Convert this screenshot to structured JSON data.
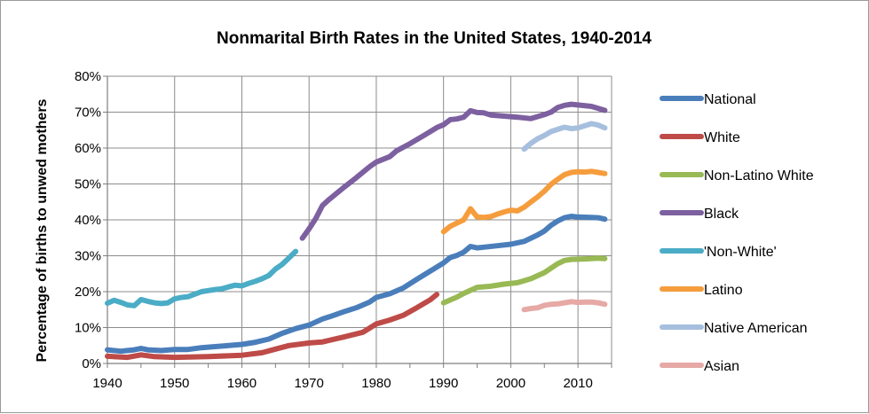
{
  "chart_data": {
    "type": "line",
    "title": "Nonmarital Birth Rates in the United States, 1940-2014",
    "ylabel": "Percentage of births to unwed mothers",
    "xlabel": "",
    "xlim": [
      1940,
      2015
    ],
    "ylim": [
      0,
      80
    ],
    "grid": true,
    "legend_position": "right",
    "x_ticks": [
      "1940",
      "1950",
      "1960",
      "1970",
      "1980",
      "1990",
      "2000",
      "2010"
    ],
    "y_ticks": [
      "0%",
      "10%",
      "20%",
      "30%",
      "40%",
      "50%",
      "60%",
      "70%",
      "80%"
    ],
    "series": [
      {
        "name": "National",
        "color": "#4a7ebb",
        "points": [
          [
            1940,
            3.8
          ],
          [
            1942,
            3.4
          ],
          [
            1943,
            3.6
          ],
          [
            1944,
            3.8
          ],
          [
            1945,
            4.2
          ],
          [
            1946,
            3.8
          ],
          [
            1948,
            3.6
          ],
          [
            1950,
            3.9
          ],
          [
            1952,
            3.9
          ],
          [
            1954,
            4.4
          ],
          [
            1956,
            4.7
          ],
          [
            1958,
            5.0
          ],
          [
            1960,
            5.3
          ],
          [
            1962,
            5.9
          ],
          [
            1964,
            6.8
          ],
          [
            1966,
            8.4
          ],
          [
            1968,
            9.7
          ],
          [
            1970,
            10.7
          ],
          [
            1972,
            12.4
          ],
          [
            1973,
            13.0
          ],
          [
            1975,
            14.3
          ],
          [
            1977,
            15.5
          ],
          [
            1979,
            17.1
          ],
          [
            1980,
            18.4
          ],
          [
            1982,
            19.4
          ],
          [
            1984,
            21.0
          ],
          [
            1986,
            23.4
          ],
          [
            1988,
            25.7
          ],
          [
            1990,
            28.0
          ],
          [
            1991,
            29.5
          ],
          [
            1992,
            30.1
          ],
          [
            1993,
            31.0
          ],
          [
            1994,
            32.6
          ],
          [
            1995,
            32.2
          ],
          [
            1996,
            32.4
          ],
          [
            1998,
            32.8
          ],
          [
            2000,
            33.2
          ],
          [
            2002,
            34.0
          ],
          [
            2004,
            35.8
          ],
          [
            2005,
            36.9
          ],
          [
            2006,
            38.5
          ],
          [
            2007,
            39.7
          ],
          [
            2008,
            40.6
          ],
          [
            2009,
            41.0
          ],
          [
            2010,
            40.8
          ],
          [
            2012,
            40.7
          ],
          [
            2013,
            40.6
          ],
          [
            2014,
            40.2
          ]
        ]
      },
      {
        "name": "White",
        "color": "#be4b48",
        "points": [
          [
            1940,
            2.0
          ],
          [
            1943,
            1.7
          ],
          [
            1945,
            2.4
          ],
          [
            1947,
            1.9
          ],
          [
            1950,
            1.7
          ],
          [
            1955,
            1.9
          ],
          [
            1960,
            2.3
          ],
          [
            1963,
            3.0
          ],
          [
            1965,
            4.0
          ],
          [
            1967,
            5.0
          ],
          [
            1970,
            5.7
          ],
          [
            1972,
            6.0
          ],
          [
            1975,
            7.3
          ],
          [
            1978,
            8.7
          ],
          [
            1980,
            11.0
          ],
          [
            1982,
            12.1
          ],
          [
            1984,
            13.4
          ],
          [
            1986,
            15.5
          ],
          [
            1988,
            17.7
          ],
          [
            1989,
            19.2
          ]
        ]
      },
      {
        "name": "Non-Latino White",
        "color": "#98b954",
        "points": [
          [
            1990,
            16.9
          ],
          [
            1992,
            18.5
          ],
          [
            1993,
            19.5
          ],
          [
            1995,
            21.2
          ],
          [
            1997,
            21.5
          ],
          [
            1999,
            22.1
          ],
          [
            2001,
            22.5
          ],
          [
            2003,
            23.6
          ],
          [
            2005,
            25.3
          ],
          [
            2007,
            27.8
          ],
          [
            2008,
            28.7
          ],
          [
            2009,
            29.0
          ],
          [
            2011,
            29.1
          ],
          [
            2013,
            29.3
          ],
          [
            2014,
            29.2
          ]
        ]
      },
      {
        "name": "Black",
        "color": "#7d60a0",
        "points": [
          [
            1969,
            34.9
          ],
          [
            1970,
            37.5
          ],
          [
            1971,
            40.4
          ],
          [
            1972,
            44.0
          ],
          [
            1973,
            45.7
          ],
          [
            1975,
            48.8
          ],
          [
            1977,
            51.7
          ],
          [
            1979,
            54.8
          ],
          [
            1980,
            56.1
          ],
          [
            1982,
            57.6
          ],
          [
            1983,
            59.2
          ],
          [
            1985,
            61.2
          ],
          [
            1987,
            63.4
          ],
          [
            1989,
            65.7
          ],
          [
            1990,
            66.5
          ],
          [
            1991,
            67.9
          ],
          [
            1992,
            68.1
          ],
          [
            1993,
            68.6
          ],
          [
            1994,
            70.4
          ],
          [
            1995,
            69.9
          ],
          [
            1996,
            69.8
          ],
          [
            1997,
            69.2
          ],
          [
            1999,
            68.9
          ],
          [
            2001,
            68.6
          ],
          [
            2003,
            68.2
          ],
          [
            2005,
            69.3
          ],
          [
            2006,
            70.0
          ],
          [
            2007,
            71.3
          ],
          [
            2008,
            71.9
          ],
          [
            2009,
            72.2
          ],
          [
            2010,
            72.0
          ],
          [
            2012,
            71.6
          ],
          [
            2014,
            70.5
          ]
        ]
      },
      {
        "name": "'Non-White'",
        "color": "#4bacc6",
        "points": [
          [
            1940,
            16.8
          ],
          [
            1941,
            17.6
          ],
          [
            1942,
            17.0
          ],
          [
            1943,
            16.3
          ],
          [
            1944,
            16.1
          ],
          [
            1945,
            17.8
          ],
          [
            1946,
            17.3
          ],
          [
            1947,
            16.9
          ],
          [
            1948,
            16.7
          ],
          [
            1949,
            16.9
          ],
          [
            1950,
            18.0
          ],
          [
            1951,
            18.4
          ],
          [
            1952,
            18.6
          ],
          [
            1953,
            19.3
          ],
          [
            1954,
            20.0
          ],
          [
            1955,
            20.3
          ],
          [
            1956,
            20.6
          ],
          [
            1957,
            20.8
          ],
          [
            1958,
            21.3
          ],
          [
            1959,
            21.8
          ],
          [
            1960,
            21.6
          ],
          [
            1961,
            22.3
          ],
          [
            1962,
            22.9
          ],
          [
            1963,
            23.6
          ],
          [
            1964,
            24.5
          ],
          [
            1965,
            26.3
          ],
          [
            1966,
            27.6
          ],
          [
            1967,
            29.4
          ],
          [
            1968,
            31.2
          ]
        ]
      },
      {
        "name": "Latino",
        "color": "#f59d3d",
        "points": [
          [
            1990,
            36.7
          ],
          [
            1991,
            38.2
          ],
          [
            1992,
            39.1
          ],
          [
            1993,
            40.0
          ],
          [
            1994,
            43.1
          ],
          [
            1995,
            40.8
          ],
          [
            1996,
            40.7
          ],
          [
            1997,
            40.9
          ],
          [
            1998,
            41.6
          ],
          [
            1999,
            42.2
          ],
          [
            2000,
            42.7
          ],
          [
            2001,
            42.5
          ],
          [
            2002,
            43.5
          ],
          [
            2003,
            45.0
          ],
          [
            2004,
            46.4
          ],
          [
            2005,
            48.0
          ],
          [
            2006,
            49.9
          ],
          [
            2007,
            51.3
          ],
          [
            2008,
            52.6
          ],
          [
            2009,
            53.2
          ],
          [
            2010,
            53.4
          ],
          [
            2011,
            53.3
          ],
          [
            2012,
            53.5
          ],
          [
            2013,
            53.2
          ],
          [
            2014,
            52.9
          ]
        ]
      },
      {
        "name": "Native American",
        "color": "#a7bfde",
        "points": [
          [
            2002,
            59.7
          ],
          [
            2003,
            61.3
          ],
          [
            2004,
            62.6
          ],
          [
            2005,
            63.5
          ],
          [
            2006,
            64.6
          ],
          [
            2007,
            65.2
          ],
          [
            2008,
            65.8
          ],
          [
            2009,
            65.4
          ],
          [
            2010,
            65.6
          ],
          [
            2011,
            66.2
          ],
          [
            2012,
            66.8
          ],
          [
            2013,
            66.4
          ],
          [
            2014,
            65.6
          ]
        ]
      },
      {
        "name": "Asian",
        "color": "#e6a9a6",
        "points": [
          [
            2002,
            15.0
          ],
          [
            2003,
            15.3
          ],
          [
            2004,
            15.5
          ],
          [
            2005,
            16.2
          ],
          [
            2006,
            16.5
          ],
          [
            2007,
            16.6
          ],
          [
            2008,
            16.9
          ],
          [
            2009,
            17.2
          ],
          [
            2010,
            17.0
          ],
          [
            2011,
            17.1
          ],
          [
            2012,
            17.1
          ],
          [
            2013,
            16.9
          ],
          [
            2014,
            16.5
          ]
        ]
      }
    ]
  }
}
